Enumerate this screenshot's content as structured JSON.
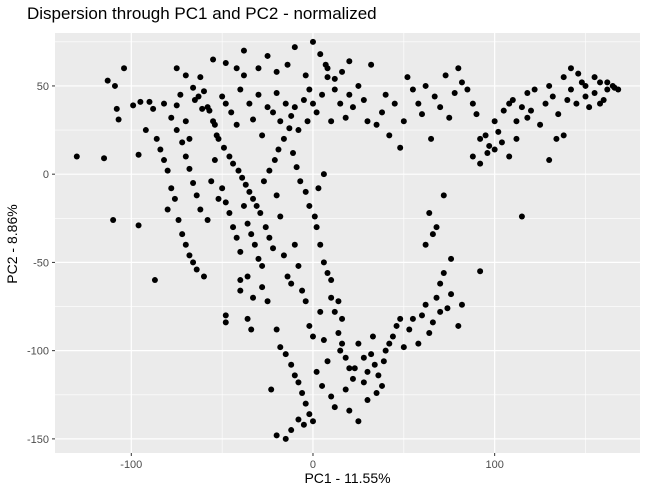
{
  "chart_data": {
    "type": "scatter",
    "title": "Dispersion through PC1 and PC2 - normalized",
    "xlabel": "PC1 - 11.55%",
    "ylabel": "PC2 - 8.86%",
    "xlim": [
      -142,
      180
    ],
    "ylim": [
      -158,
      80
    ],
    "xticks": [
      -100,
      0,
      100
    ],
    "xtick_labels": [
      "-100",
      "0",
      "100"
    ],
    "yticks": [
      -150,
      -100,
      -50,
      0,
      50
    ],
    "ytick_labels": [
      "-150",
      "-100",
      "-50",
      "0",
      "50"
    ],
    "grid": true,
    "legend": "none",
    "colors": {
      "panel": "#ebebeb",
      "grid": "#ffffff",
      "point": "#000000",
      "tick_text": "#4d4d4d"
    },
    "points": [
      [
        -130,
        10
      ],
      [
        -115,
        9
      ],
      [
        -113,
        53
      ],
      [
        -109,
        50
      ],
      [
        -108,
        37
      ],
      [
        -104,
        60
      ],
      [
        -107,
        31
      ],
      [
        -110,
        -26
      ],
      [
        -99,
        39
      ],
      [
        -95,
        41
      ],
      [
        -96,
        11
      ],
      [
        -96,
        -29
      ],
      [
        -87,
        -60
      ],
      [
        -80,
        -20
      ],
      [
        -90,
        41
      ],
      [
        -88,
        37
      ],
      [
        -82,
        40
      ],
      [
        -78,
        32
      ],
      [
        -75,
        39
      ],
      [
        -73,
        45
      ],
      [
        -70,
        30
      ],
      [
        -68,
        20
      ],
      [
        -65,
        42
      ],
      [
        -62,
        55
      ],
      [
        -60,
        47
      ],
      [
        -58,
        38
      ],
      [
        -55,
        30
      ],
      [
        -53,
        22
      ],
      [
        -50,
        44
      ],
      [
        -48,
        40
      ],
      [
        -45,
        35
      ],
      [
        -42,
        28
      ],
      [
        -40,
        48
      ],
      [
        -38,
        56
      ],
      [
        -35,
        40
      ],
      [
        -33,
        31
      ],
      [
        -30,
        45
      ],
      [
        -28,
        22
      ],
      [
        -25,
        38
      ],
      [
        -22,
        35
      ],
      [
        -20,
        46
      ],
      [
        -18,
        30
      ],
      [
        -15,
        40
      ],
      [
        -12,
        33
      ],
      [
        -10,
        38
      ],
      [
        -8,
        25
      ],
      [
        -5,
        42
      ],
      [
        -3,
        30
      ],
      [
        -2,
        48
      ],
      [
        0,
        40
      ],
      [
        2,
        35
      ],
      [
        5,
        45
      ],
      [
        7,
        62
      ],
      [
        8,
        55
      ],
      [
        10,
        30
      ],
      [
        12,
        48
      ],
      [
        15,
        40
      ],
      [
        18,
        32
      ],
      [
        20,
        45
      ],
      [
        22,
        38
      ],
      [
        25,
        50
      ],
      [
        28,
        42
      ],
      [
        30,
        30
      ],
      [
        32,
        62
      ],
      [
        35,
        28
      ],
      [
        38,
        35
      ],
      [
        40,
        45
      ],
      [
        42,
        22
      ],
      [
        45,
        40
      ],
      [
        48,
        15
      ],
      [
        50,
        30
      ],
      [
        52,
        55
      ],
      [
        -75,
        60
      ],
      [
        -70,
        56
      ],
      [
        -66,
        49
      ],
      [
        -63,
        44
      ],
      [
        -61,
        37
      ],
      [
        -57,
        36
      ],
      [
        -54,
        28
      ],
      [
        -52,
        20
      ],
      [
        -49,
        15
      ],
      [
        -46,
        10
      ],
      [
        -44,
        6
      ],
      [
        -41,
        2
      ],
      [
        -39,
        -2
      ],
      [
        -37,
        -6
      ],
      [
        -35,
        -10
      ],
      [
        -33,
        -14
      ],
      [
        -31,
        -18
      ],
      [
        -29,
        -22
      ],
      [
        -27,
        -4
      ],
      [
        -24,
        2
      ],
      [
        -21,
        8
      ],
      [
        -19,
        14
      ],
      [
        -16,
        20
      ],
      [
        -13,
        26
      ],
      [
        -11,
        12
      ],
      [
        -9,
        4
      ],
      [
        -7,
        -4
      ],
      [
        -4,
        -10
      ],
      [
        -2,
        -18
      ],
      [
        1,
        -24
      ],
      [
        3,
        -8
      ],
      [
        6,
        0
      ],
      [
        -75,
        25
      ],
      [
        -72,
        18
      ],
      [
        -70,
        10
      ],
      [
        -68,
        3
      ],
      [
        -66,
        -5
      ],
      [
        -64,
        -12
      ],
      [
        -62,
        -20
      ],
      [
        -58,
        -26
      ],
      [
        -56,
        -4
      ],
      [
        -54,
        8
      ],
      [
        -52,
        -14
      ],
      [
        -50,
        -8
      ],
      [
        -48,
        -16
      ],
      [
        -46,
        -22
      ],
      [
        -44,
        -30
      ],
      [
        -42,
        -36
      ],
      [
        -40,
        -44
      ],
      [
        -38,
        -18
      ],
      [
        -36,
        -28
      ],
      [
        -34,
        -34
      ],
      [
        -32,
        -40
      ],
      [
        -30,
        -48
      ],
      [
        -28,
        -52
      ],
      [
        -26,
        -30
      ],
      [
        -24,
        -36
      ],
      [
        -22,
        -42
      ],
      [
        -20,
        -12
      ],
      [
        -18,
        -24
      ],
      [
        -16,
        -46
      ],
      [
        -14,
        -58
      ],
      [
        -12,
        -62
      ],
      [
        -10,
        -40
      ],
      [
        -8,
        -52
      ],
      [
        -6,
        -66
      ],
      [
        -4,
        -72
      ],
      [
        -2,
        -86
      ],
      [
        0,
        -92
      ],
      [
        2,
        -30
      ],
      [
        4,
        -40
      ],
      [
        6,
        -50
      ],
      [
        8,
        -56
      ],
      [
        10,
        -70
      ],
      [
        12,
        -78
      ],
      [
        14,
        -90
      ],
      [
        16,
        -96
      ],
      [
        18,
        -104
      ],
      [
        20,
        -110
      ],
      [
        22,
        -116
      ],
      [
        -48,
        -80
      ],
      [
        -48,
        -84
      ],
      [
        -40,
        -60
      ],
      [
        -40,
        -66
      ],
      [
        -36,
        -58
      ],
      [
        -33,
        -70
      ],
      [
        -28,
        -64
      ],
      [
        -25,
        -72
      ],
      [
        -20,
        -88
      ],
      [
        -18,
        -98
      ],
      [
        -15,
        -102
      ],
      [
        -12,
        -108
      ],
      [
        -10,
        -114
      ],
      [
        -8,
        -118
      ],
      [
        -6,
        -124
      ],
      [
        -4,
        -130
      ],
      [
        -2,
        -136
      ],
      [
        0,
        -140
      ],
      [
        -5,
        -142
      ],
      [
        -8,
        -139
      ],
      [
        -12,
        -145
      ],
      [
        -15,
        -150
      ],
      [
        -20,
        -148
      ],
      [
        -23,
        -122
      ],
      [
        2,
        -112
      ],
      [
        5,
        -120
      ],
      [
        8,
        -106
      ],
      [
        10,
        -126
      ],
      [
        12,
        -132
      ],
      [
        15,
        -100
      ],
      [
        18,
        -122
      ],
      [
        20,
        -134
      ],
      [
        23,
        -110
      ],
      [
        25,
        -96
      ],
      [
        28,
        -118
      ],
      [
        30,
        -128
      ],
      [
        32,
        -102
      ],
      [
        34,
        -108
      ],
      [
        36,
        -114
      ],
      [
        38,
        -120
      ],
      [
        40,
        -100
      ],
      [
        42,
        -96
      ],
      [
        25,
        -140
      ],
      [
        28,
        -104
      ],
      [
        30,
        -112
      ],
      [
        33,
        -92
      ],
      [
        35,
        -124
      ],
      [
        39,
        -106
      ],
      [
        44,
        -92
      ],
      [
        46,
        -86
      ],
      [
        48,
        -82
      ],
      [
        50,
        -98
      ],
      [
        53,
        -88
      ],
      [
        55,
        -82
      ],
      [
        58,
        -96
      ],
      [
        60,
        -80
      ],
      [
        62,
        -74
      ],
      [
        64,
        -90
      ],
      [
        66,
        -84
      ],
      [
        68,
        -70
      ],
      [
        70,
        -62
      ],
      [
        72,
        -56
      ],
      [
        74,
        -76
      ],
      [
        76,
        -68
      ],
      [
        80,
        -86
      ],
      [
        82,
        -74
      ],
      [
        62,
        -40
      ],
      [
        66,
        -34
      ],
      [
        68,
        -30
      ],
      [
        64,
        -22
      ],
      [
        72,
        -12
      ],
      [
        76,
        -48
      ],
      [
        92,
        -55
      ],
      [
        115,
        -24
      ],
      [
        70,
        -78
      ],
      [
        10,
        -60
      ],
      [
        14,
        -72
      ],
      [
        16,
        -82
      ],
      [
        6,
        -94
      ],
      [
        4,
        -78
      ],
      [
        55,
        48
      ],
      [
        58,
        40
      ],
      [
        60,
        34
      ],
      [
        62,
        50
      ],
      [
        65,
        20
      ],
      [
        67,
        44
      ],
      [
        70,
        38
      ],
      [
        73,
        56
      ],
      [
        75,
        32
      ],
      [
        78,
        46
      ],
      [
        80,
        60
      ],
      [
        82,
        52
      ],
      [
        85,
        48
      ],
      [
        88,
        40
      ],
      [
        90,
        34
      ],
      [
        92,
        20
      ],
      [
        95,
        22
      ],
      [
        97,
        16
      ],
      [
        100,
        30
      ],
      [
        102,
        24
      ],
      [
        105,
        36
      ],
      [
        108,
        40
      ],
      [
        110,
        42
      ],
      [
        112,
        30
      ],
      [
        115,
        38
      ],
      [
        118,
        46
      ],
      [
        120,
        36
      ],
      [
        122,
        48
      ],
      [
        125,
        28
      ],
      [
        128,
        40
      ],
      [
        130,
        50
      ],
      [
        132,
        44
      ],
      [
        135,
        34
      ],
      [
        138,
        22
      ],
      [
        140,
        42
      ],
      [
        142,
        48
      ],
      [
        145,
        40
      ],
      [
        148,
        52
      ],
      [
        150,
        44
      ],
      [
        152,
        38
      ],
      [
        155,
        46
      ],
      [
        158,
        52
      ],
      [
        160,
        42
      ],
      [
        162,
        48
      ],
      [
        165,
        50
      ],
      [
        168,
        48
      ],
      [
        130,
        8
      ],
      [
        134,
        20
      ],
      [
        138,
        55
      ],
      [
        142,
        60
      ],
      [
        146,
        57
      ],
      [
        150,
        50
      ],
      [
        155,
        55
      ],
      [
        158,
        40
      ],
      [
        162,
        52
      ],
      [
        166,
        49
      ],
      [
        88,
        10
      ],
      [
        92,
        6
      ],
      [
        96,
        12
      ],
      [
        100,
        14
      ],
      [
        104,
        18
      ],
      [
        108,
        10
      ],
      [
        112,
        20
      ],
      [
        118,
        32
      ],
      [
        -55,
        65
      ],
      [
        -48,
        63
      ],
      [
        -42,
        60
      ],
      [
        -38,
        70
      ],
      [
        -30,
        60
      ],
      [
        -25,
        67
      ],
      [
        -20,
        58
      ],
      [
        -14,
        62
      ],
      [
        -10,
        72
      ],
      [
        -4,
        56
      ],
      [
        0,
        75
      ],
      [
        4,
        68
      ],
      [
        8,
        60
      ],
      [
        12,
        54
      ],
      [
        16,
        58
      ],
      [
        20,
        64
      ],
      [
        -92,
        25
      ],
      [
        -86,
        20
      ],
      [
        -84,
        14
      ],
      [
        -82,
        8
      ],
      [
        -80,
        2
      ],
      [
        -78,
        -8
      ],
      [
        -76,
        -14
      ],
      [
        -74,
        -26
      ],
      [
        -72,
        -34
      ],
      [
        -70,
        -40
      ],
      [
        -68,
        -46
      ],
      [
        -66,
        -50
      ],
      [
        -64,
        -54
      ],
      [
        -60,
        -58
      ],
      [
        -36,
        -82
      ],
      [
        -34,
        -88
      ]
    ]
  }
}
